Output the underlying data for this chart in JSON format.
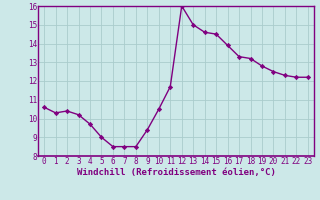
{
  "x": [
    0,
    1,
    2,
    3,
    4,
    5,
    6,
    7,
    8,
    9,
    10,
    11,
    12,
    13,
    14,
    15,
    16,
    17,
    18,
    19,
    20,
    21,
    22,
    23
  ],
  "y": [
    10.6,
    10.3,
    10.4,
    10.2,
    9.7,
    9.0,
    8.5,
    8.5,
    8.5,
    9.4,
    10.5,
    11.7,
    16.0,
    15.0,
    14.6,
    14.5,
    13.9,
    13.3,
    13.2,
    12.8,
    12.5,
    12.3,
    12.2,
    12.2
  ],
  "line_color": "#800080",
  "marker": "D",
  "marker_size": 2.2,
  "bg_color": "#cce8e8",
  "grid_color": "#aacccc",
  "xlabel": "Windchill (Refroidissement éolien,°C)",
  "xlabel_fontsize": 6.5,
  "xlim": [
    -0.5,
    23.5
  ],
  "ylim": [
    8,
    16
  ],
  "yticks": [
    8,
    9,
    10,
    11,
    12,
    13,
    14,
    15,
    16
  ],
  "xticks": [
    0,
    1,
    2,
    3,
    4,
    5,
    6,
    7,
    8,
    9,
    10,
    11,
    12,
    13,
    14,
    15,
    16,
    17,
    18,
    19,
    20,
    21,
    22,
    23
  ],
  "tick_fontsize": 5.5,
  "line_width": 1.0,
  "spine_color": "#800080"
}
